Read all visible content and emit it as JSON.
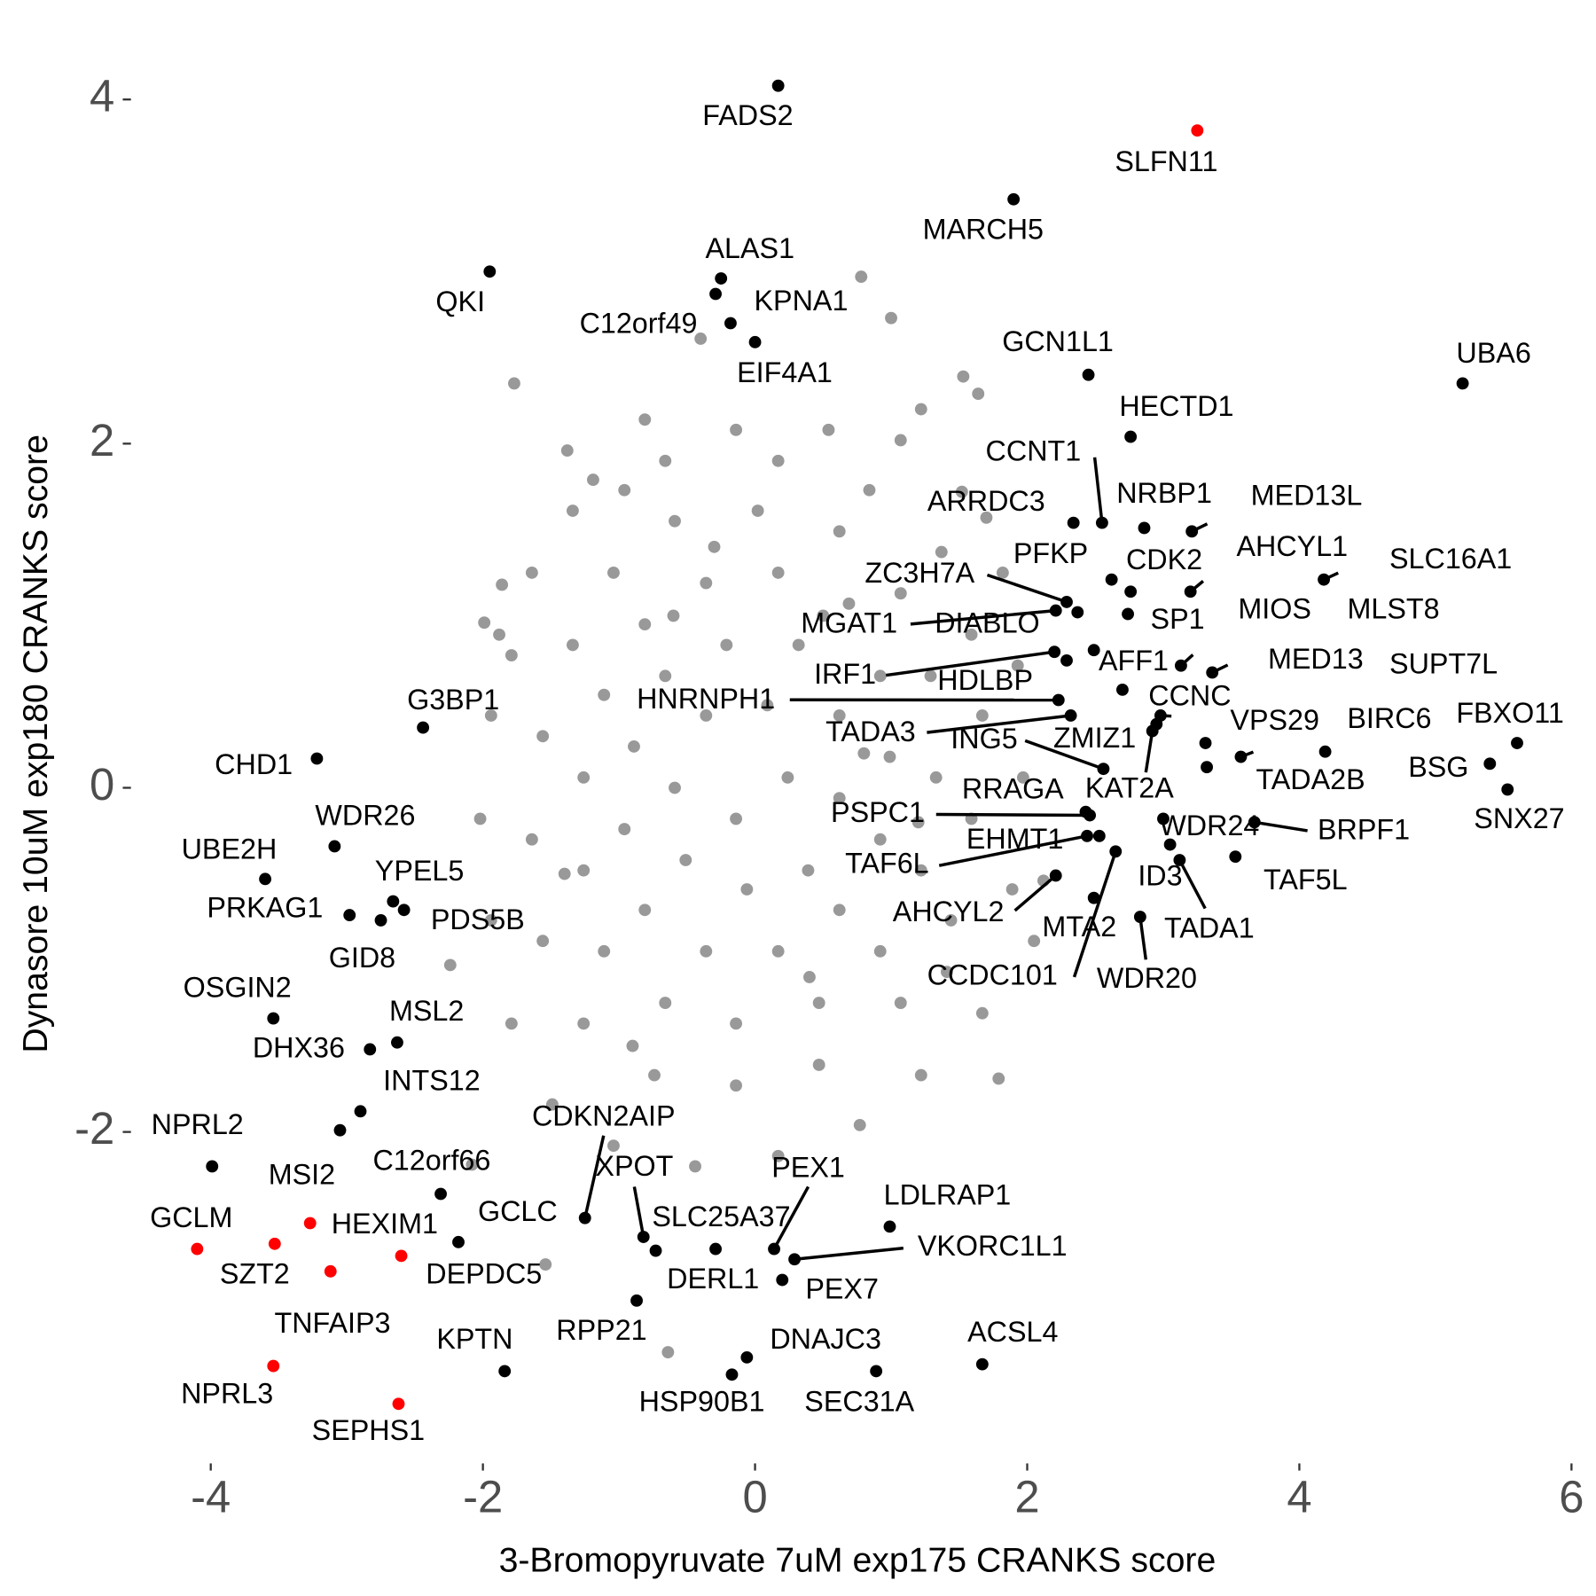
{
  "chart_data": {
    "type": "scatter",
    "xlabel": "3-Bromopyruvate 7uM exp175 CRANKS score",
    "ylabel": "Dynasore 10uM exp180 CRANKS score",
    "xlim": [
      -4.5,
      6.05
    ],
    "ylim": [
      -3.95,
      4.2
    ],
    "xticks": [
      -4,
      -2,
      0,
      2,
      4,
      6
    ],
    "yticks": [
      -2,
      0,
      2,
      4
    ],
    "series": [
      {
        "color": "#999999",
        "x": [
          0.78,
          1.0,
          -0.4,
          -1.77,
          1.53,
          1.64,
          1.7,
          -1.86,
          -1.99,
          -1.88,
          1.79,
          -1.54,
          -0.64,
          -2.24,
          -2.08,
          1.41,
          1.22,
          -1.38,
          -1.19,
          -0.96,
          -0.81,
          -0.14,
          0.54,
          1.07,
          1.52,
          1.82,
          1.93,
          1.97,
          1.89,
          1.67,
          1.22,
          0.77,
          0.17,
          -0.44,
          -1.04,
          -1.49,
          -1.79,
          -1.94,
          -2.02,
          -1.94,
          -1.79,
          -1.64,
          -1.34,
          -0.66,
          0.17,
          0.84,
          1.37,
          1.59,
          1.67,
          1.59,
          1.44,
          1.07,
          0.47,
          -0.14,
          -0.74,
          -1.26,
          -1.56,
          -1.64,
          -1.56,
          -1.34,
          -1.04,
          -0.59,
          0.02,
          0.62,
          1.07,
          1.29,
          1.33,
          1.22,
          0.92,
          0.47,
          -0.14,
          -0.66,
          -1.11,
          -1.26,
          -1.26,
          -1.11,
          -0.81,
          -0.36,
          0.17,
          0.69,
          0.92,
          0.99,
          0.92,
          0.62,
          0.17,
          -0.36,
          -0.81,
          -0.96,
          -0.89,
          -0.66,
          -0.21,
          0.32,
          0.62,
          0.62,
          0.39,
          -0.06,
          -0.51,
          -0.59,
          -0.36,
          0.09,
          0.24,
          -0.14,
          2.12,
          2.05,
          -0.3,
          0.4,
          -0.9,
          0.8,
          -1.4,
          1.2,
          -0.6,
          0.5
        ],
        "y": [
          2.97,
          2.73,
          2.61,
          2.35,
          2.39,
          2.29,
          1.57,
          1.18,
          0.96,
          0.89,
          -1.69,
          -2.77,
          -3.28,
          -1.03,
          -2.19,
          -1.07,
          2.2,
          1.96,
          1.79,
          1.73,
          2.14,
          2.08,
          2.08,
          2.02,
          1.72,
          1.25,
          0.71,
          0.06,
          -0.59,
          -1.31,
          -1.67,
          -1.96,
          -2.14,
          -2.2,
          -2.08,
          -1.84,
          -1.37,
          -0.77,
          -0.18,
          0.42,
          0.77,
          1.25,
          1.61,
          1.9,
          1.9,
          1.73,
          1.37,
          0.89,
          0.42,
          -0.18,
          -0.77,
          -1.25,
          -1.61,
          -1.73,
          -1.67,
          -1.37,
          -0.89,
          -0.3,
          0.3,
          0.83,
          1.25,
          1.55,
          1.61,
          1.49,
          1.13,
          0.65,
          0.06,
          -0.48,
          -0.95,
          -1.25,
          -1.37,
          -1.25,
          -0.95,
          -0.48,
          0.06,
          0.54,
          0.95,
          1.19,
          1.25,
          1.07,
          0.65,
          0.18,
          -0.3,
          -0.71,
          -0.95,
          -0.95,
          -0.71,
          -0.24,
          0.24,
          0.65,
          0.83,
          0.83,
          0.42,
          -0.06,
          -0.48,
          -0.59,
          -0.42,
          0.0,
          0.42,
          0.48,
          0.06,
          -0.18,
          -0.54,
          -0.89,
          1.4,
          -1.1,
          -1.5,
          0.2,
          -0.5,
          -0.2,
          1.0,
          1.0
        ]
      },
      {
        "color": "#000000",
        "labels": [
          "FADS2",
          "MARCH5",
          "QKI",
          "ALAS1",
          "C12orf49",
          "KPNA1",
          "EIF4A1",
          "GCN1L1",
          "UBA6",
          "HECTD1",
          "CCNT1",
          "ARRDC3",
          "NRBP1",
          "MED13L",
          "PFKP",
          "CDK2",
          "AHCYL1",
          "SLC16A1",
          "ZC3H7A",
          "DIABLO",
          "MGAT1",
          "SP1",
          "MIOS",
          "MLST8",
          "AFF1",
          "IRF1",
          "HDLBP",
          "MED13",
          "CCNC",
          "HNRNPH1",
          "TADA3",
          "ING5",
          "ZMIZ1",
          "KAT2A",
          "SUPT7L",
          "VPS29",
          "BIRC6",
          "FBXO11",
          "BSG",
          "SNX27",
          "TADA2B",
          "RRAGA",
          "PSPC1",
          "EHMT1",
          "TAF6L",
          "WDR24",
          "BRPF1",
          "ID3",
          "CCDC101",
          "TAF5L",
          "AHCYL2",
          "TADA1",
          "MTA2",
          "WDR20",
          "G3BP1",
          "CHD1",
          "WDR26",
          "UBE2H",
          "YPEL5",
          "PRKAG1",
          "PDS5B",
          "GID8",
          "OSGIN2",
          "MSL2",
          "DHX36",
          "INTS12",
          "MSI2",
          "NPRL2",
          "C12orf66",
          "GCLC",
          "KPTN",
          "CDKN2AIP",
          "XPOT",
          "SLC25A37",
          "DERL1",
          "RPP21",
          "PEX1",
          "PEX7",
          "VKORC1L1",
          "LDLRAP1",
          "DNAJC3",
          "HSP90B1",
          "SEC31A",
          "ACSL4"
        ],
        "x": [
          0.17,
          1.9,
          -1.95,
          -0.25,
          -0.29,
          -0.18,
          0.0,
          2.45,
          5.2,
          2.76,
          2.55,
          2.34,
          2.86,
          3.21,
          2.62,
          2.76,
          3.2,
          4.18,
          2.29,
          2.37,
          2.21,
          2.74,
          3.13,
          3.36,
          2.49,
          2.2,
          2.29,
          2.98,
          2.95,
          2.23,
          2.32,
          2.56,
          2.7,
          2.92,
          3.57,
          3.31,
          4.19,
          5.6,
          5.4,
          5.53,
          3.32,
          2.43,
          2.46,
          2.53,
          2.44,
          3.0,
          3.67,
          3.05,
          2.65,
          3.53,
          2.21,
          3.12,
          2.49,
          2.83,
          -2.44,
          -3.22,
          -3.09,
          -3.6,
          -2.66,
          -2.98,
          -2.58,
          -2.75,
          -3.54,
          -2.63,
          -2.83,
          -2.9,
          -3.05,
          -3.99,
          -2.31,
          -2.18,
          -1.84,
          -1.25,
          -0.82,
          -0.73,
          -0.29,
          -0.87,
          0.14,
          0.2,
          0.29,
          0.99,
          -0.06,
          -0.17,
          0.89,
          1.67
        ],
        "y": [
          4.08,
          3.42,
          3.0,
          2.96,
          2.87,
          2.7,
          2.59,
          2.4,
          2.35,
          2.04,
          1.54,
          1.54,
          1.51,
          1.49,
          1.21,
          1.14,
          1.14,
          1.21,
          1.08,
          1.02,
          1.03,
          1.01,
          0.71,
          0.67,
          0.8,
          0.79,
          0.74,
          0.42,
          0.37,
          0.51,
          0.42,
          0.11,
          0.57,
          0.33,
          0.18,
          0.26,
          0.21,
          0.26,
          0.14,
          -0.01,
          0.12,
          -0.14,
          -0.16,
          -0.28,
          -0.28,
          -0.18,
          -0.2,
          -0.33,
          -0.37,
          -0.4,
          -0.51,
          -0.42,
          -0.64,
          -0.75,
          0.35,
          0.17,
          -0.34,
          -0.53,
          -0.66,
          -0.74,
          -0.71,
          -0.77,
          -1.34,
          -1.48,
          -1.52,
          -1.88,
          -1.99,
          -2.2,
          -2.36,
          -2.64,
          -3.39,
          -2.5,
          -2.61,
          -2.69,
          -2.68,
          -2.98,
          -2.68,
          -2.86,
          -2.74,
          -2.55,
          -3.31,
          -3.41,
          -3.39,
          -3.35
        ]
      },
      {
        "color": "#ff0000",
        "labels": [
          "SLFN11",
          "GCLM",
          "HEXIM1",
          "SZT2",
          "TNFAIP3",
          "DEPDC5",
          "NPRL3",
          "SEPHS1"
        ],
        "x": [
          3.25,
          -4.1,
          -3.27,
          -3.53,
          -3.12,
          -2.6,
          -3.54,
          -2.62
        ],
        "y": [
          3.82,
          -2.68,
          -2.53,
          -2.65,
          -2.81,
          -2.72,
          -3.36,
          -3.58
        ]
      }
    ]
  }
}
